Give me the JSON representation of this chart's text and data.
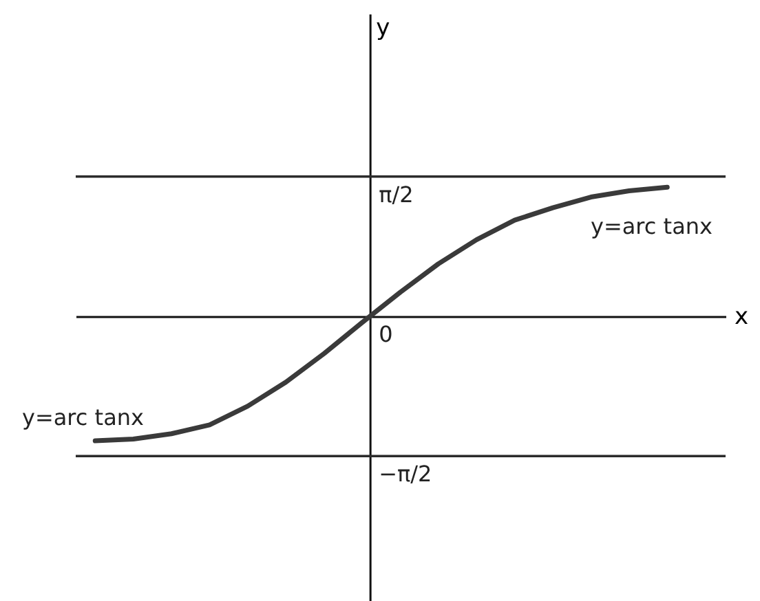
{
  "chart_data": {
    "type": "line",
    "xlabel": "x",
    "ylabel": "y",
    "color": "#3a3a3a",
    "categories": [
      null,
      null,
      null,
      null,
      null,
      null,
      null,
      null,
      null,
      null,
      null,
      null,
      null,
      null,
      null,
      null
    ],
    "values": [
      -1.4,
      -1.38,
      -1.32,
      -1.22,
      -1.01,
      -0.74,
      -0.42,
      -0.07,
      0.27,
      0.59,
      0.86,
      1.08,
      1.22,
      1.34,
      1.41,
      1.45
    ],
    "ylim": [
      -3.2,
      3.4
    ],
    "yticks": [
      {
        "value": 1.5708,
        "label": "π/2"
      },
      {
        "value": 0,
        "label": "0"
      },
      {
        "value": -1.5708,
        "label": "−π/2"
      }
    ],
    "ref_lines": [
      {
        "axis": "y",
        "value": 1.5708,
        "label": null,
        "color": "#2b2b2b"
      },
      {
        "axis": "y",
        "value": -1.5708,
        "label": null,
        "color": "#2b2b2b"
      }
    ],
    "annotations": [
      "y=arc tanx",
      "y=arc tanx"
    ],
    "tick_labels": "y",
    "grid": false
  }
}
